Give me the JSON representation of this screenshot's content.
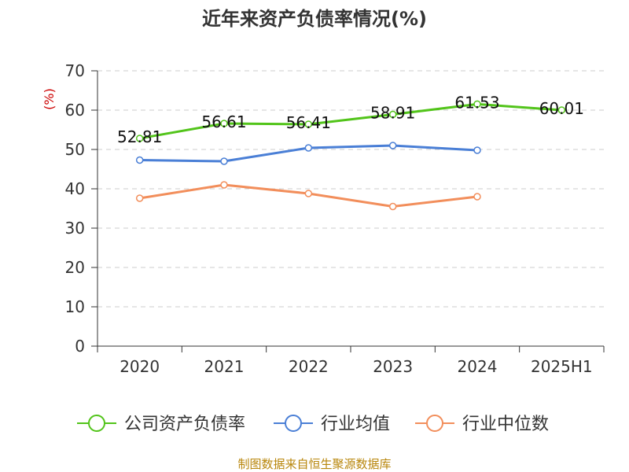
{
  "chart_data": {
    "type": "line",
    "title": "近年来资产负债率情况(%)",
    "ylabel": "(%)",
    "xlabel": "",
    "categories": [
      "2020",
      "2021",
      "2022",
      "2023",
      "2024",
      "2025H1"
    ],
    "ylim": [
      0,
      70
    ],
    "yticks": [
      0,
      10,
      20,
      30,
      40,
      50,
      60,
      70
    ],
    "grid": true,
    "legend_position": "bottom",
    "series": [
      {
        "name": "公司资产负债率",
        "color": "#52c41a",
        "values": [
          52.81,
          56.61,
          56.41,
          58.91,
          61.53,
          60.01
        ],
        "labels": [
          "52.81",
          "56.61",
          "56.41",
          "58.91",
          "61.53",
          "60.01"
        ]
      },
      {
        "name": "行业均值",
        "color": "#4a7fd6",
        "values": [
          47.3,
          47.0,
          50.4,
          51.0,
          49.8,
          null
        ]
      },
      {
        "name": "行业中位数",
        "color": "#f28e5b",
        "values": [
          37.6,
          41.0,
          38.8,
          35.5,
          38.0,
          null
        ]
      }
    ]
  },
  "footer": {
    "source": "制图数据来自恒生聚源数据库"
  }
}
